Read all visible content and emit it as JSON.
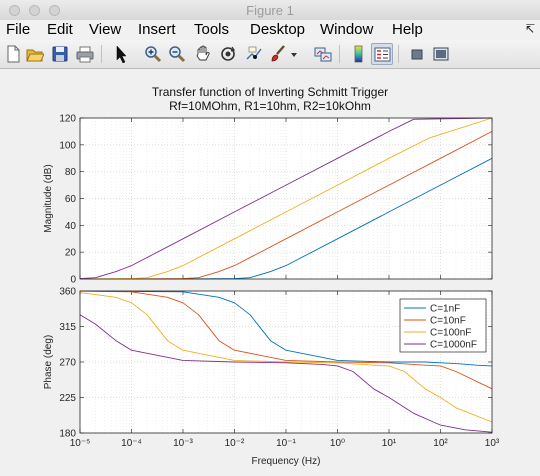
{
  "window": {
    "title": "Figure 1"
  },
  "menu": {
    "items": [
      "File",
      "Edit",
      "View",
      "Insert",
      "Tools",
      "Desktop",
      "Window",
      "Help"
    ],
    "overflow_icon": "curved-arrow-icon"
  },
  "toolbar": {
    "buttons": [
      {
        "icon": "new-figure-icon"
      },
      {
        "icon": "open-file-icon"
      },
      {
        "icon": "save-icon"
      },
      {
        "icon": "print-icon"
      },
      {
        "icon": "edit-plot-arrow-icon"
      },
      {
        "icon": "zoom-in-icon"
      },
      {
        "icon": "zoom-out-icon"
      },
      {
        "icon": "pan-hand-icon"
      },
      {
        "icon": "rotate-3d-icon"
      },
      {
        "icon": "data-cursor-icon"
      },
      {
        "icon": "brush-icon"
      },
      {
        "icon": "link-plot-icon"
      },
      {
        "icon": "insert-colorbar-icon"
      },
      {
        "icon": "insert-legend-icon"
      },
      {
        "icon": "hide-plot-tools-icon"
      },
      {
        "icon": "show-plot-tools-icon"
      }
    ],
    "colors": {
      "accent": "#3a6fb0"
    }
  },
  "figure": {
    "title_line1": "Transfer function of Inverting Schmitt Trigger",
    "title_line2": "Rf=10MOhm, R1=10hm, R2=10kOhm"
  },
  "chart_data": [
    {
      "type": "line",
      "ylabel": "Magnitude (dB)",
      "xscale": "log",
      "xlim": [
        1e-05,
        1000
      ],
      "ylim": [
        0,
        120
      ],
      "yticks": [
        0,
        20,
        40,
        60,
        80,
        100,
        120
      ],
      "grid": true,
      "series": [
        {
          "name": "C=1nF",
          "color": "#0072bd",
          "x": [
            1e-05,
            0.0001,
            0.001,
            0.01,
            0.02,
            0.05,
            0.1,
            1,
            10,
            100,
            1000
          ],
          "y": [
            0,
            0,
            0,
            0.3,
            1,
            5.5,
            10,
            30,
            50,
            70,
            90
          ]
        },
        {
          "name": "C=10nF",
          "color": "#d95319",
          "x": [
            1e-05,
            0.0001,
            0.001,
            0.002,
            0.005,
            0.01,
            0.1,
            1,
            10,
            100,
            1000
          ],
          "y": [
            0,
            0,
            0.3,
            1,
            5.5,
            10,
            30,
            50,
            70,
            90,
            110
          ]
        },
        {
          "name": "C=100nF",
          "color": "#edb120",
          "x": [
            1e-05,
            0.0001,
            0.0002,
            0.0005,
            0.001,
            0.01,
            0.1,
            1,
            10,
            60,
            1000
          ],
          "y": [
            0,
            0.3,
            1,
            5.5,
            10,
            30,
            50,
            70,
            90,
            105,
            120
          ]
        },
        {
          "name": "C=1000nF",
          "color": "#7e2f8e",
          "x": [
            1e-05,
            2e-05,
            5e-05,
            0.0001,
            0.001,
            0.01,
            0.1,
            1,
            10,
            30,
            1000
          ],
          "y": [
            0.3,
            1,
            5.5,
            10,
            30,
            50,
            70,
            90,
            110,
            119,
            120
          ]
        }
      ]
    },
    {
      "type": "line",
      "xlabel": "Frequency  (Hz)",
      "ylabel": "Phase (deg)",
      "xscale": "log",
      "xlim": [
        1e-05,
        1000
      ],
      "ylim": [
        180,
        360
      ],
      "yticks": [
        180,
        225,
        270,
        315,
        360
      ],
      "xticks": [
        "10⁻⁵",
        "10⁻⁴",
        "10⁻³",
        "10⁻²",
        "10⁻¹",
        "10⁰",
        "10¹",
        "10²",
        "10³"
      ],
      "grid": true,
      "legend": {
        "position": "top-right",
        "entries": [
          "C=1nF",
          "C=10nF",
          "C=100nF",
          "C=1000nF"
        ]
      },
      "series": [
        {
          "name": "C=1nF",
          "color": "#0072bd",
          "x": [
            1e-05,
            0.001,
            0.005,
            0.01,
            0.02,
            0.05,
            0.1,
            1,
            10,
            50,
            100,
            200,
            500,
            1000
          ],
          "y": [
            360,
            359,
            352,
            345,
            330,
            297,
            285,
            272,
            270,
            270,
            269,
            268,
            266,
            265
          ]
        },
        {
          "name": "C=10nF",
          "color": "#d95319",
          "x": [
            1e-05,
            0.0001,
            0.0005,
            0.001,
            0.002,
            0.005,
            0.01,
            0.1,
            1,
            10,
            50,
            100,
            200,
            1000
          ],
          "y": [
            360,
            359,
            352,
            345,
            330,
            297,
            285,
            272,
            270,
            269,
            266,
            265,
            258,
            236
          ]
        },
        {
          "name": "C=100nF",
          "color": "#edb120",
          "x": [
            1e-05,
            5e-05,
            0.0001,
            0.0002,
            0.0005,
            0.001,
            0.01,
            0.1,
            1,
            5,
            10,
            20,
            50,
            100,
            200,
            1000
          ],
          "y": [
            358,
            352,
            345,
            330,
            297,
            285,
            272,
            270,
            269,
            266,
            265,
            258,
            236,
            225,
            212,
            194
          ]
        },
        {
          "name": "C=1000nF",
          "color": "#7e2f8e",
          "x": [
            1e-05,
            2e-05,
            5e-05,
            0.0001,
            0.001,
            0.01,
            0.1,
            0.5,
            1,
            2,
            5,
            10,
            30,
            100,
            300,
            1000
          ],
          "y": [
            330,
            318,
            297,
            285,
            272,
            270,
            269,
            267,
            265,
            258,
            236,
            225,
            205,
            190,
            184,
            181
          ]
        }
      ]
    }
  ]
}
